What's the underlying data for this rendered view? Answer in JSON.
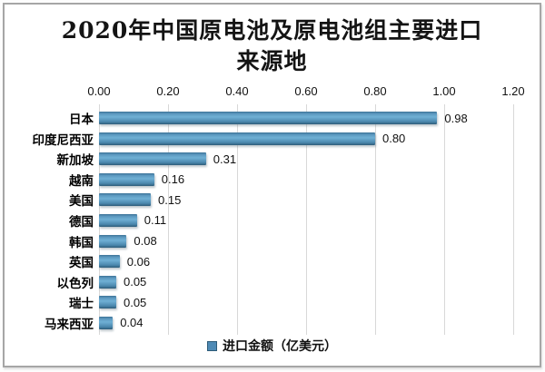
{
  "chart_data": {
    "type": "bar",
    "orientation": "horizontal",
    "title": "2020年中国原电池及原电池组主要进口来源地",
    "title_lines": [
      "2020年中国原电池及原电池组主要进口",
      "来源地"
    ],
    "categories": [
      "日本",
      "印度尼西亚",
      "新加坡",
      "越南",
      "美国",
      "德国",
      "韩国",
      "英国",
      "以色列",
      "瑞士",
      "马来西亚"
    ],
    "values": [
      0.98,
      0.8,
      0.31,
      0.16,
      0.15,
      0.11,
      0.08,
      0.06,
      0.05,
      0.05,
      0.04
    ],
    "value_labels": [
      "0.98",
      "0.80",
      "0.31",
      "0.16",
      "0.15",
      "0.11",
      "0.08",
      "0.06",
      "0.05",
      "0.05",
      "0.04"
    ],
    "x_axis": {
      "position": "top",
      "min": 0,
      "max": 1.2,
      "ticks": [
        "0.00",
        "0.20",
        "0.40",
        "0.60",
        "0.80",
        "1.00",
        "1.20"
      ]
    },
    "grid": "vertical",
    "legend": {
      "label": "进口金额（亿美元）",
      "position": "bottom",
      "swatch_color": "#4e8ab5"
    },
    "bar_color": "#4e8ab5",
    "colors": {
      "bar_mid": "#5d9ac1",
      "bar_highlight": "#6fb0d4",
      "bar_dark_edge": "#2d5b78",
      "gridline": "#d8d8d8",
      "frame_border": "#a6a6a6",
      "background": "#ffffff",
      "text": "#111111"
    }
  }
}
